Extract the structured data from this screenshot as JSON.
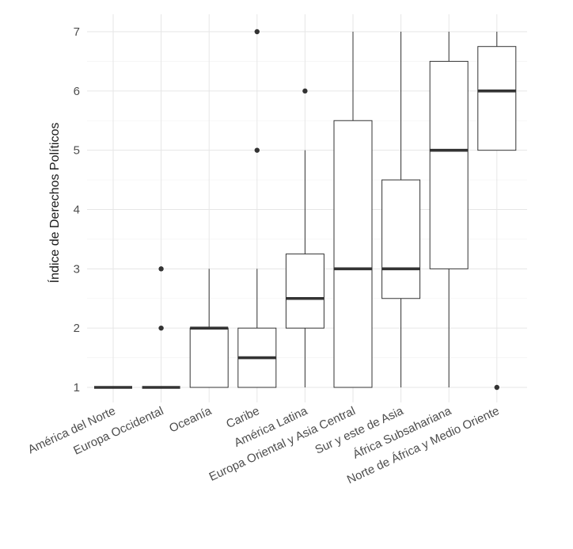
{
  "chart_data": {
    "type": "boxplot",
    "title": "",
    "xlabel": "",
    "ylabel": "Índice de Derechos Políticos",
    "ylim": [
      0.75,
      7.3
    ],
    "yticks": [
      1,
      2,
      3,
      4,
      5,
      6,
      7
    ],
    "grid": true,
    "categories": [
      "América del Norte",
      "Europa Occidental",
      "Oceanía",
      "Caribe",
      "América Latina",
      "Europa Oriental y Asia Central",
      "Sur y este de Asia",
      "África Subsahariana",
      "Norte de África y Medio Oriente"
    ],
    "boxes": [
      {
        "min": 1,
        "q1": 1,
        "median": 1,
        "q3": 1,
        "max": 1,
        "outliers": []
      },
      {
        "min": 1,
        "q1": 1,
        "median": 1,
        "q3": 1,
        "max": 1,
        "outliers": [
          2,
          3
        ]
      },
      {
        "min": 1,
        "q1": 1,
        "median": 2,
        "q3": 2,
        "max": 3,
        "outliers": []
      },
      {
        "min": 1,
        "q1": 1,
        "median": 1.5,
        "q3": 2,
        "max": 3,
        "outliers": [
          5,
          7
        ]
      },
      {
        "min": 1,
        "q1": 2,
        "median": 2.5,
        "q3": 3.25,
        "max": 5,
        "outliers": [
          6
        ]
      },
      {
        "min": 1,
        "q1": 1,
        "median": 3,
        "q3": 5.5,
        "max": 7,
        "outliers": []
      },
      {
        "min": 1,
        "q1": 2.5,
        "median": 3,
        "q3": 4.5,
        "max": 7,
        "outliers": []
      },
      {
        "min": 1,
        "q1": 3,
        "median": 5,
        "q3": 6.5,
        "max": 7,
        "outliers": []
      },
      {
        "min": 5,
        "q1": 5,
        "median": 6,
        "q3": 6.75,
        "max": 7,
        "outliers": [
          1
        ]
      }
    ]
  }
}
